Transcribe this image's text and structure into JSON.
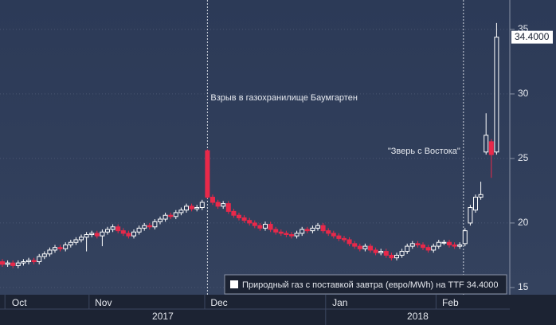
{
  "chart_data": {
    "type": "candlestick",
    "series": [
      {
        "name": "Природный газ с поставкой завтра (евро/MWh) на TTF 34.4000",
        "color_up": "#ffffff",
        "color_down": "#e8294a",
        "open": [
          17.0,
          16.8,
          16.9,
          16.7,
          16.9,
          17.0,
          17.1,
          17.0,
          17.4,
          17.6,
          17.9,
          18.1,
          18.0,
          18.3,
          18.5,
          18.7,
          18.9,
          19.1,
          19.2,
          19.0,
          19.3,
          19.5,
          19.7,
          19.4,
          19.2,
          19.0,
          19.3,
          19.6,
          19.8,
          19.7,
          20.1,
          20.3,
          20.6,
          20.5,
          20.8,
          21.0,
          21.3,
          21.1,
          21.2,
          25.6,
          22.0,
          21.6,
          21.3,
          21.5,
          20.9,
          20.6,
          20.4,
          20.2,
          20.0,
          19.8,
          19.6,
          19.9,
          19.5,
          19.3,
          19.2,
          19.1,
          19.0,
          19.2,
          19.5,
          19.4,
          19.6,
          19.8,
          19.4,
          19.2,
          19.0,
          18.8,
          18.7,
          18.4,
          18.2,
          18.0,
          18.2,
          17.9,
          17.7,
          17.8,
          17.5,
          17.3,
          17.5,
          17.8,
          18.2,
          18.4,
          18.3,
          18.1,
          17.9,
          18.2,
          18.5,
          18.5,
          18.3,
          18.2,
          18.4,
          20.0,
          21.0,
          22.0,
          25.5,
          26.3,
          25.5
        ],
        "high": [
          17.2,
          17.1,
          17.1,
          17.1,
          17.2,
          17.3,
          17.3,
          17.6,
          17.8,
          18.1,
          18.3,
          18.3,
          18.5,
          18.7,
          18.9,
          19.1,
          19.3,
          19.4,
          19.4,
          19.5,
          19.7,
          19.9,
          19.9,
          19.6,
          19.4,
          19.5,
          19.8,
          20.0,
          20.0,
          20.3,
          20.5,
          20.8,
          20.8,
          21.0,
          21.2,
          21.5,
          21.5,
          21.4,
          21.8,
          25.7,
          22.2,
          21.8,
          21.7,
          21.7,
          21.1,
          20.8,
          20.6,
          20.4,
          20.2,
          20.0,
          20.1,
          20.1,
          19.7,
          19.5,
          19.4,
          19.3,
          19.4,
          19.7,
          19.7,
          19.8,
          20.0,
          20.0,
          19.6,
          19.4,
          19.2,
          19.0,
          18.9,
          18.6,
          18.4,
          18.4,
          18.4,
          18.1,
          18.0,
          18.0,
          17.7,
          17.7,
          18.0,
          18.4,
          18.6,
          18.6,
          18.5,
          18.3,
          18.4,
          18.7,
          18.7,
          18.7,
          18.5,
          18.5,
          19.6,
          21.4,
          22.2,
          23.2,
          28.5,
          26.5,
          35.5
        ],
        "low": [
          16.6,
          16.6,
          16.5,
          16.5,
          16.7,
          16.8,
          16.8,
          16.8,
          17.2,
          17.4,
          17.7,
          17.8,
          17.8,
          18.1,
          18.3,
          18.5,
          17.8,
          18.9,
          18.8,
          18.2,
          19.1,
          19.3,
          19.2,
          19.0,
          18.8,
          18.8,
          19.1,
          19.4,
          19.5,
          19.5,
          19.9,
          20.1,
          20.3,
          20.3,
          20.6,
          20.8,
          20.9,
          20.9,
          21.0,
          21.9,
          21.4,
          21.1,
          21.1,
          20.7,
          20.4,
          20.2,
          20.0,
          19.8,
          19.6,
          19.4,
          19.4,
          19.3,
          19.1,
          19.0,
          18.9,
          18.8,
          18.8,
          19.0,
          19.2,
          19.2,
          19.4,
          19.2,
          19.0,
          18.8,
          18.6,
          18.5,
          18.2,
          18.0,
          17.8,
          17.8,
          17.7,
          17.5,
          17.5,
          17.3,
          17.1,
          17.1,
          17.3,
          17.6,
          18.0,
          18.1,
          17.9,
          17.7,
          17.7,
          18.0,
          18.3,
          18.1,
          18.0,
          18.0,
          18.2,
          19.8,
          20.8,
          21.8,
          25.3,
          23.5,
          25.3
        ],
        "close": [
          16.8,
          16.9,
          16.7,
          16.9,
          17.0,
          17.1,
          17.0,
          17.4,
          17.6,
          17.9,
          18.1,
          18.0,
          18.3,
          18.5,
          18.7,
          18.9,
          19.1,
          19.2,
          19.0,
          19.3,
          19.5,
          19.7,
          19.4,
          19.2,
          19.0,
          19.3,
          19.6,
          19.8,
          19.7,
          20.1,
          20.3,
          20.6,
          20.5,
          20.8,
          21.0,
          21.3,
          21.1,
          21.2,
          21.6,
          22.0,
          21.6,
          21.3,
          21.5,
          20.9,
          20.6,
          20.4,
          20.2,
          20.0,
          19.8,
          19.6,
          19.9,
          19.5,
          19.3,
          19.2,
          19.1,
          19.0,
          19.2,
          19.5,
          19.4,
          19.6,
          19.8,
          19.4,
          19.2,
          19.0,
          18.8,
          18.7,
          18.4,
          18.2,
          18.0,
          18.2,
          17.9,
          17.7,
          17.8,
          17.5,
          17.3,
          17.5,
          17.8,
          18.2,
          18.4,
          18.3,
          18.1,
          17.9,
          18.2,
          18.5,
          18.5,
          18.3,
          18.2,
          18.3,
          19.4,
          21.2,
          22.0,
          22.2,
          26.8,
          25.3,
          34.4
        ],
        "last_label": "34.4000"
      }
    ],
    "categories": [
      null,
      null,
      "Oct",
      null,
      null,
      null,
      null,
      null,
      null,
      null,
      null,
      null,
      null,
      null,
      null,
      null,
      null,
      null,
      "Nov",
      null,
      null,
      null,
      null,
      null,
      null,
      null,
      null,
      null,
      null,
      null,
      null,
      null,
      null,
      null,
      null,
      null,
      null,
      null,
      null,
      null,
      "Dec",
      null,
      null,
      null,
      null,
      null,
      null,
      null,
      null,
      null,
      null,
      null,
      null,
      null,
      null,
      null,
      null,
      null,
      null,
      null,
      null,
      null,
      null,
      "Jan",
      null,
      null,
      null,
      null,
      null,
      null,
      null,
      null,
      null,
      null,
      null,
      null,
      null,
      null,
      null,
      null,
      null,
      null,
      null,
      null,
      "Feb",
      null,
      null,
      null,
      null,
      null,
      null,
      null,
      null,
      null,
      null
    ],
    "year_labels": [
      "2017",
      "2018"
    ],
    "annotations": [
      {
        "text": "Взрыв в газохранилище Баумгартен"
      },
      {
        "text": "\"Зверь с Востока\""
      }
    ],
    "ylim": [
      14.44,
      37.28
    ],
    "yticks": [
      15,
      20,
      25,
      30,
      35
    ],
    "grid": true
  }
}
